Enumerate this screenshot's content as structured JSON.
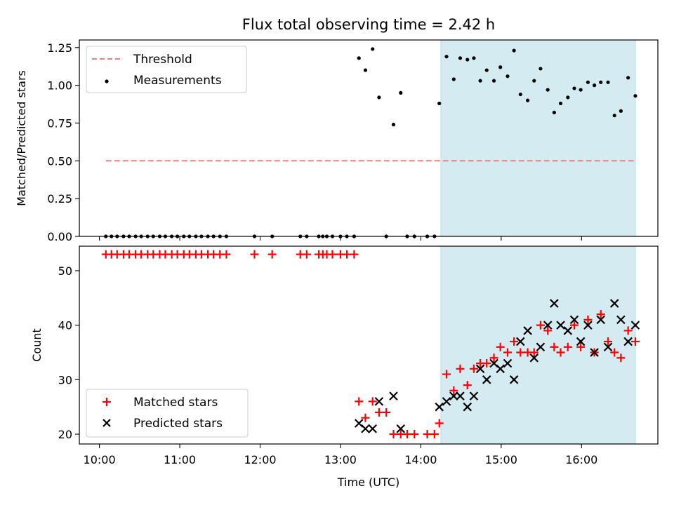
{
  "chart_data": {
    "type": "scatter",
    "title": "Flux total observing time = 2.42 h",
    "xlabel": "Time (UTC)",
    "x_unit": "hours_utc",
    "xlim": [
      9.75,
      16.95
    ],
    "xticks": [
      10,
      11,
      12,
      13,
      14,
      15,
      16
    ],
    "xtick_labels": [
      "10:00",
      "11:00",
      "12:00",
      "13:00",
      "14:00",
      "15:00",
      "16:00"
    ],
    "shaded_region": {
      "x": [
        14.25,
        16.67
      ],
      "color": "#d4ebf2"
    },
    "panels": [
      {
        "id": "ratio",
        "ylabel": "Matched/Predicted stars",
        "ylim": [
          0,
          1.3
        ],
        "yticks": [
          0,
          0.25,
          0.5,
          0.75,
          1.0,
          1.25
        ],
        "ytick_labels": [
          "0.00",
          "0.25",
          "0.50",
          "0.75",
          "1.00",
          "1.25"
        ],
        "legend_placement": "upper-left",
        "threshold": {
          "name": "Threshold",
          "value": 0.5,
          "x": [
            10.08,
            16.67
          ],
          "color": "#f08080",
          "style": "dashed"
        },
        "series": [
          {
            "name": "Measurements",
            "marker": "dot",
            "color": "#000000",
            "points": [
              [
                10.08,
                0
              ],
              [
                10.15,
                0
              ],
              [
                10.22,
                0
              ],
              [
                10.3,
                0
              ],
              [
                10.37,
                0
              ],
              [
                10.45,
                0
              ],
              [
                10.52,
                0
              ],
              [
                10.6,
                0
              ],
              [
                10.67,
                0
              ],
              [
                10.75,
                0
              ],
              [
                10.82,
                0
              ],
              [
                10.9,
                0
              ],
              [
                10.97,
                0
              ],
              [
                11.05,
                0
              ],
              [
                11.12,
                0
              ],
              [
                11.2,
                0
              ],
              [
                11.27,
                0
              ],
              [
                11.35,
                0
              ],
              [
                11.42,
                0
              ],
              [
                11.5,
                0
              ],
              [
                11.58,
                0
              ],
              [
                11.93,
                0
              ],
              [
                12.15,
                0
              ],
              [
                12.5,
                0
              ],
              [
                12.58,
                0
              ],
              [
                12.73,
                0
              ],
              [
                12.78,
                0
              ],
              [
                12.83,
                0
              ],
              [
                12.9,
                0
              ],
              [
                13.0,
                0
              ],
              [
                13.08,
                0
              ],
              [
                13.17,
                0
              ],
              [
                13.57,
                0
              ],
              [
                13.83,
                0
              ],
              [
                13.92,
                0
              ],
              [
                14.08,
                0
              ],
              [
                14.17,
                0
              ],
              [
                13.23,
                1.18
              ],
              [
                13.31,
                1.1
              ],
              [
                13.4,
                1.24
              ],
              [
                13.48,
                0.92
              ],
              [
                13.66,
                0.74
              ],
              [
                13.75,
                0.95
              ],
              [
                14.23,
                0.88
              ],
              [
                14.32,
                1.19
              ],
              [
                14.41,
                1.04
              ],
              [
                14.49,
                1.18
              ],
              [
                14.58,
                1.17
              ],
              [
                14.66,
                1.18
              ],
              [
                14.74,
                1.03
              ],
              [
                14.82,
                1.1
              ],
              [
                14.91,
                1.03
              ],
              [
                14.99,
                1.12
              ],
              [
                15.08,
                1.06
              ],
              [
                15.16,
                1.23
              ],
              [
                15.24,
                0.94
              ],
              [
                15.33,
                0.9
              ],
              [
                15.41,
                1.03
              ],
              [
                15.49,
                1.11
              ],
              [
                15.58,
                0.97
              ],
              [
                15.66,
                0.82
              ],
              [
                15.74,
                0.88
              ],
              [
                15.83,
                0.92
              ],
              [
                15.91,
                0.98
              ],
              [
                15.99,
                0.97
              ],
              [
                16.08,
                1.02
              ],
              [
                16.16,
                1.0
              ],
              [
                16.24,
                1.02
              ],
              [
                16.33,
                1.02
              ],
              [
                16.41,
                0.8
              ],
              [
                16.49,
                0.83
              ],
              [
                16.58,
                1.05
              ],
              [
                16.67,
                0.93
              ]
            ]
          }
        ]
      },
      {
        "id": "counts",
        "ylabel": "Count",
        "ylim": [
          18.2,
          54.5
        ],
        "yticks": [
          20,
          30,
          40,
          50
        ],
        "ytick_labels": [
          "20",
          "30",
          "40",
          "50"
        ],
        "legend_placement": "lower-left",
        "series": [
          {
            "name": "Matched stars",
            "marker": "plus",
            "color": "#ff0000",
            "points": [
              [
                10.08,
                53
              ],
              [
                10.15,
                53
              ],
              [
                10.22,
                53
              ],
              [
                10.3,
                53
              ],
              [
                10.37,
                53
              ],
              [
                10.45,
                53
              ],
              [
                10.52,
                53
              ],
              [
                10.6,
                53
              ],
              [
                10.67,
                53
              ],
              [
                10.75,
                53
              ],
              [
                10.82,
                53
              ],
              [
                10.9,
                53
              ],
              [
                10.97,
                53
              ],
              [
                11.05,
                53
              ],
              [
                11.12,
                53
              ],
              [
                11.2,
                53
              ],
              [
                11.27,
                53
              ],
              [
                11.35,
                53
              ],
              [
                11.42,
                53
              ],
              [
                11.5,
                53
              ],
              [
                11.58,
                53
              ],
              [
                11.93,
                53
              ],
              [
                12.15,
                53
              ],
              [
                12.5,
                53
              ],
              [
                12.58,
                53
              ],
              [
                12.73,
                53
              ],
              [
                12.78,
                53
              ],
              [
                12.83,
                53
              ],
              [
                12.9,
                53
              ],
              [
                13.0,
                53
              ],
              [
                13.08,
                53
              ],
              [
                13.17,
                53
              ],
              [
                13.23,
                26
              ],
              [
                13.31,
                23
              ],
              [
                13.4,
                26
              ],
              [
                13.48,
                24
              ],
              [
                13.57,
                24
              ],
              [
                13.66,
                20
              ],
              [
                13.75,
                20
              ],
              [
                13.83,
                20
              ],
              [
                13.92,
                20
              ],
              [
                14.08,
                20
              ],
              [
                14.17,
                20
              ],
              [
                14.23,
                22
              ],
              [
                14.32,
                31
              ],
              [
                14.41,
                28
              ],
              [
                14.49,
                32
              ],
              [
                14.58,
                29
              ],
              [
                14.66,
                32
              ],
              [
                14.74,
                33
              ],
              [
                14.82,
                33
              ],
              [
                14.91,
                34
              ],
              [
                14.99,
                36
              ],
              [
                15.08,
                35
              ],
              [
                15.16,
                37
              ],
              [
                15.24,
                35
              ],
              [
                15.33,
                35
              ],
              [
                15.41,
                35
              ],
              [
                15.49,
                40
              ],
              [
                15.58,
                39
              ],
              [
                15.66,
                36
              ],
              [
                15.74,
                35
              ],
              [
                15.83,
                36
              ],
              [
                15.91,
                40
              ],
              [
                15.99,
                36
              ],
              [
                16.08,
                41
              ],
              [
                16.16,
                35
              ],
              [
                16.24,
                42
              ],
              [
                16.33,
                37
              ],
              [
                16.41,
                35
              ],
              [
                16.49,
                34
              ],
              [
                16.58,
                39
              ],
              [
                16.67,
                37
              ]
            ]
          },
          {
            "name": "Predicted stars",
            "marker": "x",
            "color": "#000000",
            "points": [
              [
                13.23,
                22
              ],
              [
                13.31,
                21
              ],
              [
                13.4,
                21
              ],
              [
                13.48,
                26
              ],
              [
                13.66,
                27
              ],
              [
                13.75,
                21
              ],
              [
                14.23,
                25
              ],
              [
                14.32,
                26
              ],
              [
                14.41,
                27
              ],
              [
                14.49,
                27
              ],
              [
                14.58,
                25
              ],
              [
                14.66,
                27
              ],
              [
                14.74,
                32
              ],
              [
                14.82,
                30
              ],
              [
                14.91,
                33
              ],
              [
                14.99,
                32
              ],
              [
                15.08,
                33
              ],
              [
                15.16,
                30
              ],
              [
                15.24,
                37
              ],
              [
                15.33,
                39
              ],
              [
                15.41,
                34
              ],
              [
                15.49,
                36
              ],
              [
                15.58,
                40
              ],
              [
                15.66,
                44
              ],
              [
                15.74,
                40
              ],
              [
                15.83,
                39
              ],
              [
                15.91,
                41
              ],
              [
                15.99,
                37
              ],
              [
                16.08,
                40
              ],
              [
                16.16,
                35
              ],
              [
                16.24,
                41
              ],
              [
                16.33,
                36
              ],
              [
                16.41,
                44
              ],
              [
                16.49,
                41
              ],
              [
                16.58,
                37
              ],
              [
                16.67,
                40
              ]
            ]
          }
        ]
      }
    ]
  }
}
